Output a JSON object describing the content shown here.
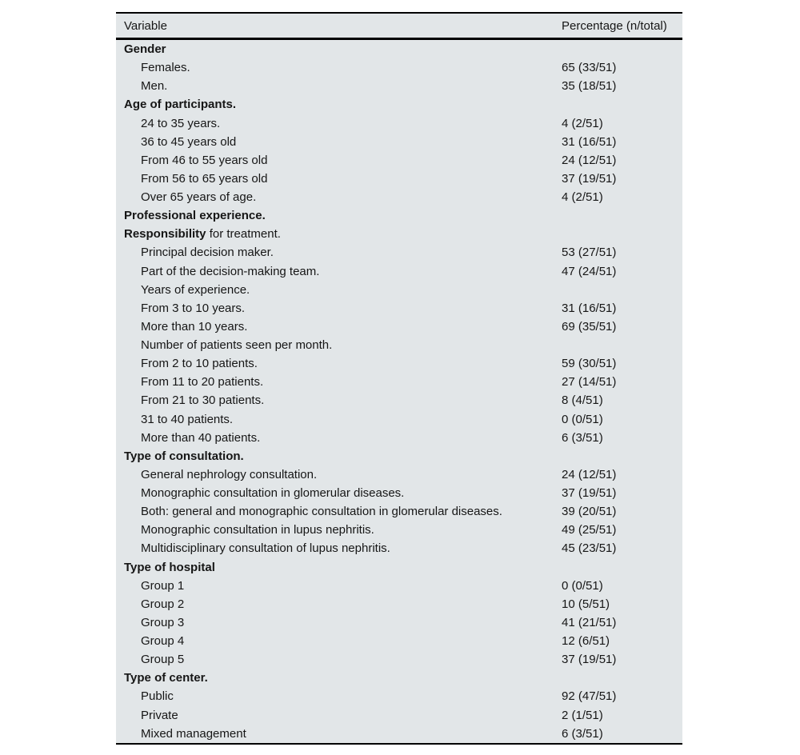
{
  "table": {
    "columns": [
      "Variable",
      "Percentage (n/total)"
    ],
    "colors": {
      "table_bg": "#e2e6e8",
      "rule": "#000000",
      "text": "#161616"
    },
    "rows": [
      {
        "type": "section",
        "label": "Gender",
        "value": ""
      },
      {
        "type": "item",
        "label": "Females.",
        "value": "65 (33/51)"
      },
      {
        "type": "item",
        "label": "Men.",
        "value": "35 (18/51)"
      },
      {
        "type": "section",
        "label": "Age of participants.",
        "value": ""
      },
      {
        "type": "item",
        "label": "24 to 35 years.",
        "value": "4 (2/51)"
      },
      {
        "type": "item",
        "label": "36 to 45 years old",
        "value": "31 (16/51)"
      },
      {
        "type": "item",
        "label": "From 46 to 55 years old",
        "value": "24 (12/51)"
      },
      {
        "type": "item",
        "label": "From 56 to 65 years old",
        "value": "37 (19/51)"
      },
      {
        "type": "item",
        "label": "Over 65 years of age.",
        "value": "4 (2/51)"
      },
      {
        "type": "section",
        "label": "Professional experience.",
        "value": ""
      },
      {
        "type": "mixed",
        "label_bold": "Responsibility",
        "label_rest": " for treatment.",
        "value": ""
      },
      {
        "type": "item",
        "label": "Principal decision maker.",
        "value": "53 (27/51)"
      },
      {
        "type": "item",
        "label": "Part of the decision-making team.",
        "value": "47 (24/51)"
      },
      {
        "type": "item",
        "label": "Years of experience.",
        "value": ""
      },
      {
        "type": "item",
        "label": "From 3 to 10 years.",
        "value": "31 (16/51)"
      },
      {
        "type": "item",
        "label": "More than 10 years.",
        "value": "69 (35/51)"
      },
      {
        "type": "item",
        "label": "Number of patients seen per month.",
        "value": ""
      },
      {
        "type": "item",
        "label": "From 2 to 10 patients.",
        "value": "59 (30/51)"
      },
      {
        "type": "item",
        "label": "From 11 to 20 patients.",
        "value": "27 (14/51)"
      },
      {
        "type": "item",
        "label": "From 21 to 30 patients.",
        "value": "8 (4/51)"
      },
      {
        "type": "item",
        "label": "31 to 40 patients.",
        "value": "0 (0/51)"
      },
      {
        "type": "item",
        "label": "More than 40 patients.",
        "value": "6 (3/51)"
      },
      {
        "type": "section",
        "label": "Type of consultation.",
        "value": ""
      },
      {
        "type": "item",
        "label": "General nephrology consultation.",
        "value": "24 (12/51)"
      },
      {
        "type": "item",
        "label": "Monographic consultation in glomerular diseases.",
        "value": "37 (19/51)"
      },
      {
        "type": "item",
        "label": "Both: general and monographic consultation in glomerular diseases.",
        "value": "39 (20/51)"
      },
      {
        "type": "item",
        "label": "Monographic consultation in lupus nephritis.",
        "value": "49 (25/51)"
      },
      {
        "type": "item",
        "label": "Multidisciplinary consultation of lupus nephritis.",
        "value": "45 (23/51)"
      },
      {
        "type": "section",
        "label": "Type of hospital",
        "value": ""
      },
      {
        "type": "item",
        "label": "Group 1",
        "value": "0 (0/51)"
      },
      {
        "type": "item",
        "label": "Group 2",
        "value": "10 (5/51)"
      },
      {
        "type": "item",
        "label": "Group 3",
        "value": "41 (21/51)"
      },
      {
        "type": "item",
        "label": "Group 4",
        "value": "12 (6/51)"
      },
      {
        "type": "item",
        "label": "Group 5",
        "value": "37 (19/51)"
      },
      {
        "type": "section",
        "label": "Type of center.",
        "value": ""
      },
      {
        "type": "item",
        "label": "Public",
        "value": "92 (47/51)"
      },
      {
        "type": "item",
        "label": "Private",
        "value": "2 (1/51)"
      },
      {
        "type": "item",
        "label": "Mixed management",
        "value": "6 (3/51)"
      }
    ]
  }
}
